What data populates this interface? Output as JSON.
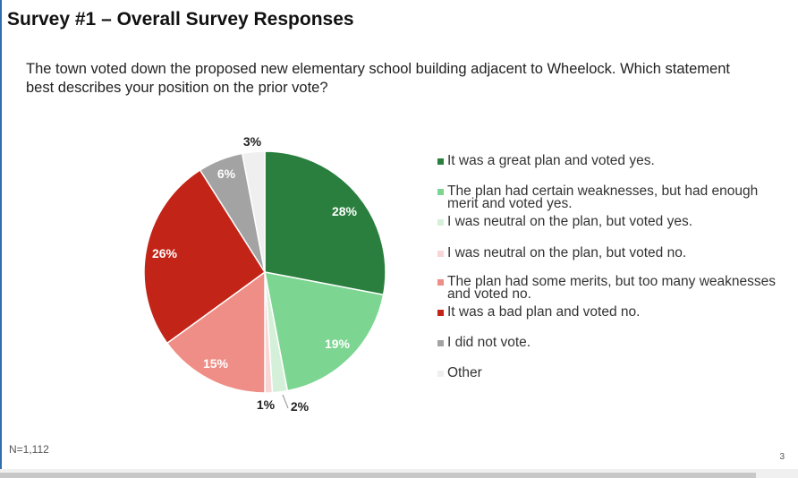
{
  "title": "Survey #1 – Overall Survey Responses",
  "question": "The town voted down the proposed new elementary school building adjacent to Wheelock. Which statement best describes your position on the prior vote?",
  "footnote": "N=1,112",
  "page_number": "3",
  "chart_data": {
    "type": "pie",
    "title": "",
    "legend_placement": "right",
    "start_angle_deg": 0,
    "direction": "clockwise",
    "slices": [
      {
        "label": "It was a great plan and voted yes.",
        "value": 28,
        "display": "28%",
        "color": "#2a7f3e"
      },
      {
        "label": "The plan had certain weaknesses, but had enough merit and voted yes.",
        "value": 19,
        "display": "19%",
        "color": "#7dd592"
      },
      {
        "label": "I was neutral on the plan, but voted yes.",
        "value": 2,
        "display": "2%",
        "color": "#d5f0d9"
      },
      {
        "label": "I was neutral on the plan, but voted no.",
        "value": 1,
        "display": "1%",
        "color": "#f9d6d6"
      },
      {
        "label": "The plan had some merits, but too many weaknesses and voted no.",
        "value": 15,
        "display": "15%",
        "color": "#ef8e86"
      },
      {
        "label": "It was a bad plan and voted no.",
        "value": 26,
        "display": "26%",
        "color": "#c32418"
      },
      {
        "label": "I did not vote.",
        "value": 6,
        "display": "6%",
        "color": "#a3a3a3"
      },
      {
        "label": "Other",
        "value": 3,
        "display": "3%",
        "color": "#efefef"
      }
    ]
  }
}
